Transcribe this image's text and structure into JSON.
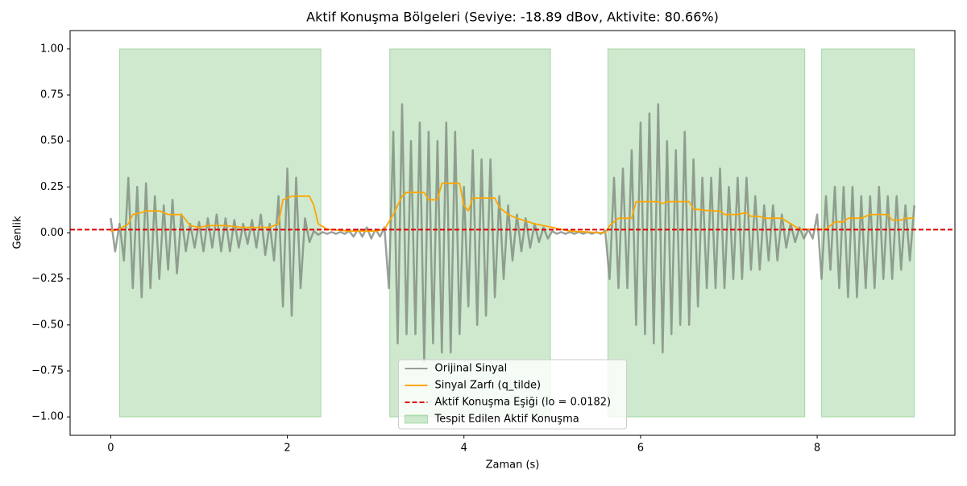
{
  "chart_data": {
    "type": "line",
    "title": "Aktif Konuşma Bölgeleri (Seviye: -18.89 dBov, Aktivite: 80.66%)",
    "xlabel": "Zaman (s)",
    "ylabel": "Genlik",
    "xlim": [
      -0.46,
      9.56
    ],
    "ylim": [
      -1.1,
      1.1
    ],
    "xticks": [
      0,
      2,
      4,
      6,
      8
    ],
    "yticks": [
      {
        "value": -1,
        "label": "−1.00"
      },
      {
        "value": -0.75,
        "label": "−0.75"
      },
      {
        "value": -0.5,
        "label": "−0.50"
      },
      {
        "value": -0.25,
        "label": "−0.25"
      },
      {
        "value": 0,
        "label": "0.00"
      },
      {
        "value": 0.25,
        "label": "0.25"
      },
      {
        "value": 0.5,
        "label": "0.50"
      },
      {
        "value": 0.75,
        "label": "0.75"
      },
      {
        "value": 1,
        "label": "1.00"
      }
    ],
    "legend": "lower center",
    "regions": {
      "name": "Tespit Edilen Aktif Konuşma",
      "color": "#2ca02c",
      "opacity": 0.23,
      "ymin": -1,
      "ymax": 1,
      "spans": [
        [
          0.1,
          2.38
        ],
        [
          3.16,
          4.98
        ],
        [
          5.63,
          7.86
        ],
        [
          8.05,
          9.1
        ]
      ]
    },
    "series": [
      {
        "name": "Orijinal Sinyal",
        "color": "#808a80",
        "opacity": 0.8,
        "x": [
          0,
          0.05,
          0.1,
          0.15,
          0.2,
          0.25,
          0.3,
          0.35,
          0.4,
          0.45,
          0.5,
          0.55,
          0.6,
          0.65,
          0.7,
          0.75,
          0.8,
          0.85,
          0.9,
          0.95,
          1,
          1.05,
          1.1,
          1.15,
          1.2,
          1.25,
          1.3,
          1.35,
          1.4,
          1.45,
          1.5,
          1.55,
          1.6,
          1.65,
          1.7,
          1.75,
          1.8,
          1.85,
          1.9,
          1.95,
          2,
          2.05,
          2.1,
          2.15,
          2.2,
          2.25,
          2.3,
          2.35,
          2.4,
          2.45,
          2.5,
          2.55,
          2.6,
          2.65,
          2.7,
          2.75,
          2.8,
          2.85,
          2.9,
          2.95,
          3,
          3.05,
          3.1,
          3.15,
          3.2,
          3.25,
          3.3,
          3.35,
          3.4,
          3.45,
          3.5,
          3.55,
          3.6,
          3.65,
          3.7,
          3.75,
          3.8,
          3.85,
          3.9,
          3.95,
          4,
          4.05,
          4.1,
          4.15,
          4.2,
          4.25,
          4.3,
          4.35,
          4.4,
          4.45,
          4.5,
          4.55,
          4.6,
          4.65,
          4.7,
          4.75,
          4.8,
          4.85,
          4.9,
          4.95,
          5,
          5.05,
          5.1,
          5.15,
          5.2,
          5.25,
          5.3,
          5.35,
          5.4,
          5.45,
          5.5,
          5.55,
          5.6,
          5.65,
          5.7,
          5.75,
          5.8,
          5.85,
          5.9,
          5.95,
          6,
          6.05,
          6.1,
          6.15,
          6.2,
          6.25,
          6.3,
          6.35,
          6.4,
          6.45,
          6.5,
          6.55,
          6.6,
          6.65,
          6.7,
          6.75,
          6.8,
          6.85,
          6.9,
          6.95,
          7,
          7.05,
          7.1,
          7.15,
          7.2,
          7.25,
          7.3,
          7.35,
          7.4,
          7.45,
          7.5,
          7.55,
          7.6,
          7.65,
          7.7,
          7.75,
          7.8,
          7.85,
          7.9,
          7.95,
          8,
          8.05,
          8.1,
          8.15,
          8.2,
          8.25,
          8.3,
          8.35,
          8.4,
          8.45,
          8.5,
          8.55,
          8.6,
          8.65,
          8.7,
          8.75,
          8.8,
          8.85,
          8.9,
          8.95,
          9,
          9.05,
          9.1
        ],
        "values": [
          0.08,
          -0.1,
          0.05,
          -0.15,
          0.3,
          -0.3,
          0.25,
          -0.35,
          0.27,
          -0.3,
          0.2,
          -0.25,
          0.15,
          -0.2,
          0.18,
          -0.22,
          0.1,
          -0.1,
          0.05,
          -0.08,
          0.06,
          -0.1,
          0.08,
          -0.08,
          0.1,
          -0.1,
          0.08,
          -0.1,
          0.07,
          -0.08,
          0.05,
          -0.06,
          0.07,
          -0.08,
          0.1,
          -0.12,
          0.05,
          -0.15,
          0.2,
          -0.4,
          0.35,
          -0.45,
          0.3,
          -0.3,
          0.08,
          -0.05,
          0.01,
          -0.01,
          0.005,
          -0.005,
          0.005,
          -0.005,
          0.005,
          -0.005,
          0.01,
          -0.02,
          0.02,
          -0.02,
          0.03,
          -0.03,
          0.02,
          -0.02,
          0.03,
          -0.3,
          0.55,
          -0.6,
          0.7,
          -0.55,
          0.5,
          -0.55,
          0.6,
          -0.7,
          0.55,
          -0.6,
          0.5,
          -0.65,
          0.6,
          -0.65,
          0.55,
          -0.55,
          0.25,
          -0.4,
          0.45,
          -0.5,
          0.4,
          -0.45,
          0.4,
          -0.35,
          0.2,
          -0.25,
          0.15,
          -0.15,
          0.1,
          -0.1,
          0.08,
          -0.08,
          0.05,
          -0.05,
          0.03,
          -0.03,
          0.01,
          -0.005,
          0.005,
          -0.005,
          0.005,
          -0.005,
          0.005,
          -0.005,
          0.005,
          -0.005,
          0.005,
          -0.005,
          0.01,
          -0.25,
          0.3,
          -0.3,
          0.35,
          -0.3,
          0.45,
          -0.5,
          0.6,
          -0.55,
          0.65,
          -0.6,
          0.7,
          -0.65,
          0.5,
          -0.55,
          0.45,
          -0.5,
          0.55,
          -0.5,
          0.4,
          -0.4,
          0.3,
          -0.3,
          0.3,
          -0.3,
          0.35,
          -0.3,
          0.25,
          -0.25,
          0.3,
          -0.25,
          0.3,
          -0.2,
          0.2,
          -0.2,
          0.15,
          -0.15,
          0.15,
          -0.15,
          0.1,
          -0.08,
          0.05,
          -0.05,
          0.03,
          -0.03,
          0.02,
          -0.03,
          0.1,
          -0.25,
          0.2,
          -0.2,
          0.25,
          -0.3,
          0.25,
          -0.35,
          0.25,
          -0.35,
          0.2,
          -0.3,
          0.2,
          -0.3,
          0.25,
          -0.25,
          0.2,
          -0.25,
          0.2,
          -0.2,
          0.15,
          -0.15,
          0.15
        ]
      },
      {
        "name": "Sinyal Zarfı (q_tilde)",
        "color": "#ffa500",
        "opacity": 1,
        "x": [
          0,
          0.1,
          0.2,
          0.25,
          0.35,
          0.4,
          0.55,
          0.6,
          0.65,
          0.8,
          0.85,
          0.9,
          1,
          1.1,
          1.3,
          1.5,
          1.8,
          1.9,
          1.95,
          2.05,
          2.25,
          2.3,
          2.35,
          2.45,
          2.7,
          3,
          3.1,
          3.2,
          3.3,
          3.35,
          3.55,
          3.6,
          3.7,
          3.75,
          3.95,
          4,
          4.05,
          4.1,
          4.35,
          4.4,
          4.5,
          4.6,
          4.8,
          5,
          5.2,
          5.6,
          5.65,
          5.75,
          5.9,
          5.95,
          6.2,
          6.25,
          6.3,
          6.55,
          6.6,
          6.8,
          6.9,
          6.95,
          7.1,
          7.2,
          7.25,
          7.35,
          7.4,
          7.6,
          7.7,
          7.8,
          7.95,
          8.1,
          8.2,
          8.3,
          8.35,
          8.5,
          8.6,
          8.8,
          8.85,
          8.95,
          9,
          9.1
        ],
        "values": [
          0.01,
          0.02,
          0.05,
          0.1,
          0.11,
          0.12,
          0.12,
          0.11,
          0.1,
          0.1,
          0.07,
          0.04,
          0.03,
          0.04,
          0.04,
          0.03,
          0.03,
          0.05,
          0.18,
          0.2,
          0.2,
          0.15,
          0.05,
          0.02,
          0.01,
          0.01,
          0.02,
          0.1,
          0.2,
          0.22,
          0.22,
          0.18,
          0.18,
          0.27,
          0.27,
          0.15,
          0.12,
          0.19,
          0.19,
          0.14,
          0.1,
          0.08,
          0.05,
          0.03,
          0.01,
          0,
          0.04,
          0.08,
          0.08,
          0.17,
          0.17,
          0.16,
          0.17,
          0.17,
          0.13,
          0.12,
          0.12,
          0.1,
          0.1,
          0.11,
          0.09,
          0.09,
          0.08,
          0.08,
          0.05,
          0.02,
          0.02,
          0.02,
          0.06,
          0.06,
          0.08,
          0.08,
          0.1,
          0.1,
          0.07,
          0.07,
          0.08,
          0.08
        ]
      }
    ],
    "threshold": {
      "name": "Aktif Konuşma Eşiği (lo = 0.0182)",
      "value": 0.0182,
      "color": "#e00000"
    }
  }
}
